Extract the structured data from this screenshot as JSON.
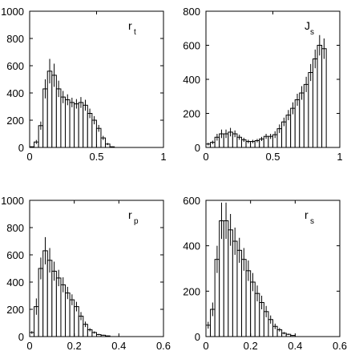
{
  "chart_data": [
    {
      "type": "bar",
      "label": "r",
      "label_sub": "t",
      "xlim": [
        0,
        1
      ],
      "ylim": [
        0,
        1000
      ],
      "xticks": [
        0,
        0.5,
        1
      ],
      "xtick_labels": [
        "0",
        "0.5",
        "1"
      ],
      "yticks": [
        0,
        200,
        400,
        600,
        800,
        1000
      ],
      "ytick_labels": [
        "0",
        "200",
        "400",
        "600",
        "800",
        "1000"
      ],
      "bin_width": 0.0333,
      "bins_start": 0,
      "values": [
        5,
        40,
        160,
        430,
        560,
        530,
        430,
        370,
        350,
        330,
        320,
        330,
        310,
        250,
        200,
        140,
        70,
        25,
        5,
        0,
        0,
        0,
        0,
        0,
        0,
        0,
        0,
        0,
        0,
        0
      ],
      "errors": [
        3,
        15,
        30,
        70,
        90,
        85,
        60,
        45,
        40,
        35,
        35,
        40,
        40,
        35,
        30,
        25,
        15,
        8,
        3,
        0,
        0,
        0,
        0,
        0,
        0,
        0,
        0,
        0,
        0,
        0
      ]
    },
    {
      "type": "bar",
      "label": "J",
      "label_sub": "s",
      "xlim": [
        0,
        1
      ],
      "ylim": [
        0,
        800
      ],
      "xticks": [
        0,
        0.5,
        1
      ],
      "xtick_labels": [
        "0",
        "0.5",
        "1"
      ],
      "yticks": [
        0,
        200,
        400,
        600,
        800
      ],
      "ytick_labels": [
        "0",
        "200",
        "400",
        "600",
        "800"
      ],
      "bin_width": 0.0333,
      "bins_start": 0,
      "values": [
        20,
        30,
        60,
        80,
        80,
        90,
        80,
        60,
        45,
        35,
        35,
        40,
        50,
        65,
        65,
        75,
        110,
        150,
        190,
        230,
        280,
        320,
        370,
        440,
        520,
        600,
        580,
        0,
        0,
        0
      ],
      "errors": [
        8,
        10,
        20,
        25,
        25,
        25,
        20,
        15,
        12,
        10,
        10,
        10,
        12,
        15,
        15,
        20,
        25,
        25,
        30,
        35,
        35,
        40,
        45,
        50,
        55,
        60,
        60,
        0,
        0,
        0
      ]
    },
    {
      "type": "bar",
      "label": "r",
      "label_sub": "p",
      "xlim": [
        0,
        0.6
      ],
      "ylim": [
        0,
        1000
      ],
      "xticks": [
        0,
        0.2,
        0.4,
        0.6
      ],
      "xtick_labels": [
        "0",
        "0.2",
        "0.4",
        "0.6"
      ],
      "yticks": [
        0,
        200,
        400,
        600,
        800,
        1000
      ],
      "ytick_labels": [
        "0",
        "200",
        "400",
        "600",
        "800",
        "1000"
      ],
      "bin_width": 0.02,
      "bins_start": 0,
      "values": [
        30,
        220,
        500,
        630,
        560,
        480,
        430,
        380,
        320,
        270,
        220,
        150,
        90,
        50,
        30,
        15,
        10,
        5,
        0,
        0,
        0,
        0,
        0,
        0,
        0,
        0,
        0,
        0,
        0,
        0
      ],
      "errors": [
        10,
        60,
        80,
        100,
        90,
        70,
        60,
        55,
        45,
        40,
        35,
        30,
        20,
        12,
        8,
        5,
        3,
        2,
        0,
        0,
        0,
        0,
        0,
        0,
        0,
        0,
        0,
        0,
        0,
        0
      ]
    },
    {
      "type": "bar",
      "label": "r",
      "label_sub": "s",
      "xlim": [
        0,
        0.6
      ],
      "ylim": [
        0,
        600
      ],
      "xticks": [
        0,
        0.2,
        0.4,
        0.6
      ],
      "xtick_labels": [
        "0",
        "0.2",
        "0.4",
        "0.6"
      ],
      "yticks": [
        0,
        200,
        400,
        600
      ],
      "ytick_labels": [
        "0",
        "200",
        "400",
        "600"
      ],
      "bin_width": 0.02,
      "bins_start": 0,
      "values": [
        50,
        120,
        340,
        510,
        510,
        470,
        420,
        380,
        340,
        290,
        240,
        190,
        150,
        110,
        75,
        45,
        30,
        15,
        10,
        5,
        0,
        0,
        0,
        0,
        0,
        0,
        0,
        0,
        0,
        0
      ],
      "errors": [
        15,
        30,
        60,
        80,
        80,
        70,
        60,
        55,
        50,
        45,
        40,
        35,
        30,
        25,
        18,
        12,
        8,
        5,
        3,
        2,
        0,
        0,
        0,
        0,
        0,
        0,
        0,
        0,
        0,
        0
      ]
    }
  ]
}
